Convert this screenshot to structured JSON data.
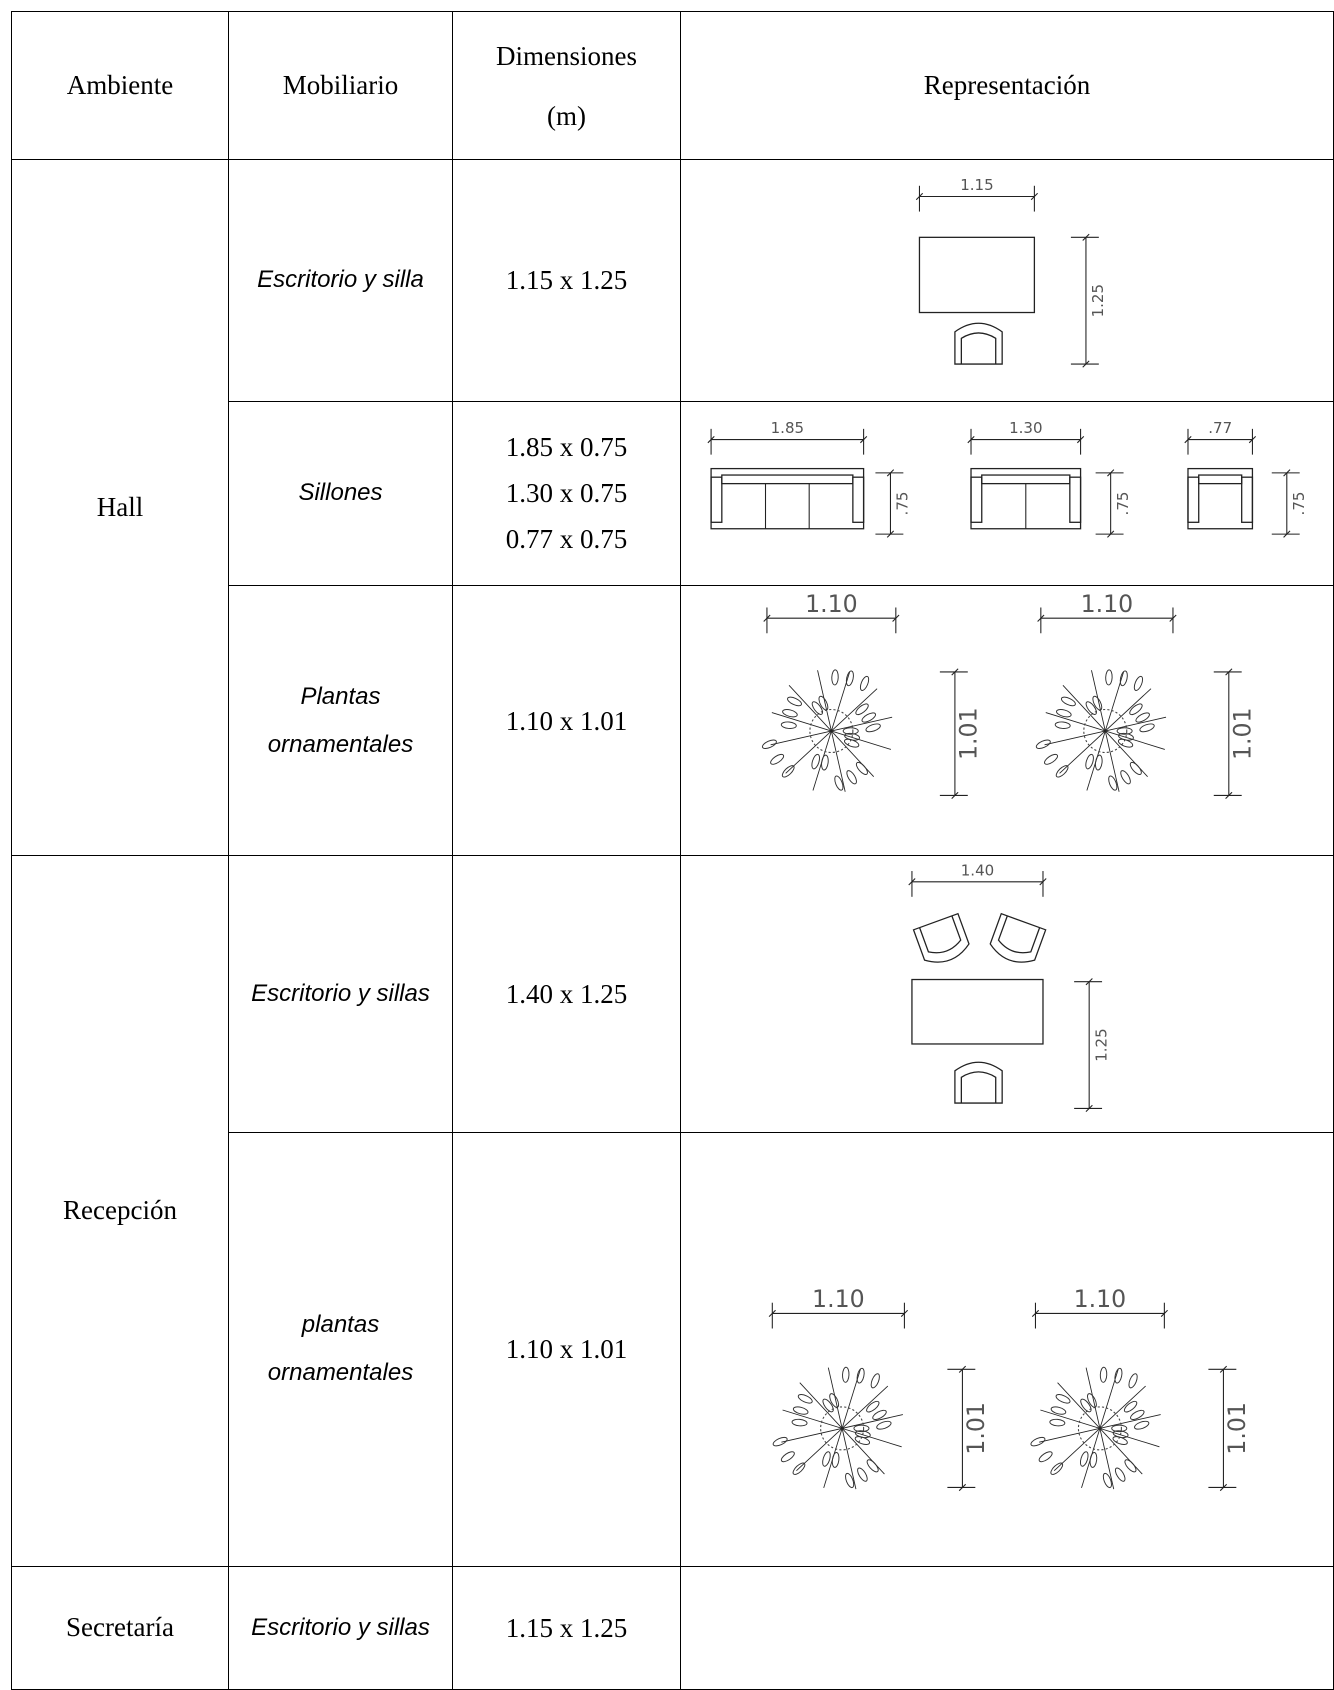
{
  "table": {
    "header": {
      "ambiente": "Ambiente",
      "mobiliario": "Mobiliario",
      "dimensiones": [
        "Dimensiones",
        "(m)"
      ],
      "representacion": "Representación"
    },
    "rows": [
      {
        "ambiente": "Hall",
        "mobiliario": "Escritorio y silla",
        "dimensiones": [
          "1.15 x 1.25"
        ],
        "drawing_labels": [
          "1.15",
          "1.25"
        ]
      },
      {
        "mobiliario": "Sillones",
        "dimensiones": [
          "1.85 x 0.75",
          "1.30 x 0.75",
          "0.77 x 0.75"
        ],
        "drawing_labels": [
          "1.85",
          ".75",
          "1.30",
          ".75",
          ".77",
          ".75"
        ]
      },
      {
        "mobiliario": "Plantas ornamentales",
        "dimensiones": [
          "1.10 x 1.01"
        ],
        "drawing_labels": [
          "1.10",
          "1.01",
          "1.10",
          "1.01"
        ]
      },
      {
        "ambiente": "Recepción",
        "mobiliario": "Escritorio y sillas",
        "dimensiones": [
          "1.40 x 1.25"
        ],
        "drawing_labels": [
          "1.40",
          "1.25"
        ]
      },
      {
        "mobiliario": "plantas ornamentales",
        "dimensiones": [
          "1.10 x 1.01"
        ],
        "drawing_labels": [
          "1.10",
          "1.01",
          "1.10",
          "1.01"
        ]
      },
      {
        "ambiente": "Secretaría",
        "mobiliario": "Escritorio y sillas",
        "dimensiones": [
          "1.15 x 1.25"
        ]
      }
    ]
  }
}
